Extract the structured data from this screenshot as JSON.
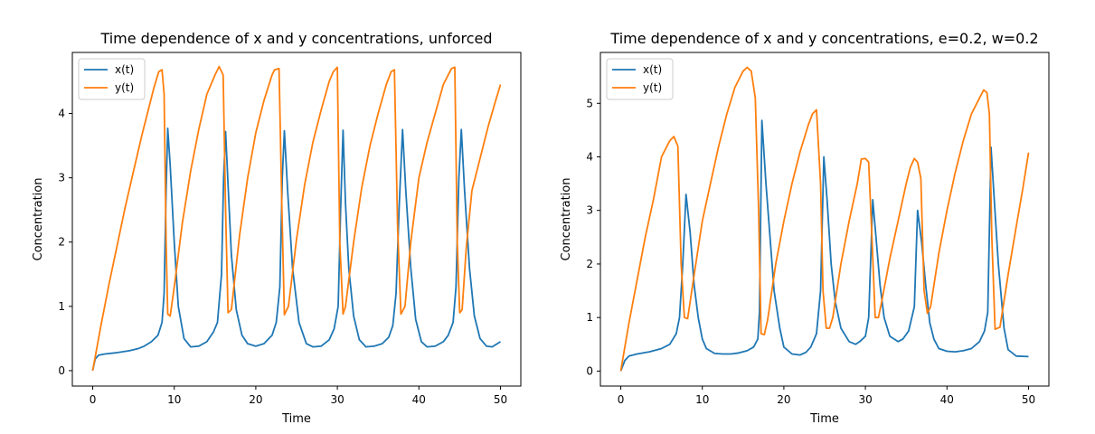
{
  "chart_data": [
    {
      "type": "line",
      "title": "Time dependence of x and y concentrations, unforced",
      "xlabel": "Time",
      "ylabel": "Concentration",
      "xlim": [
        -2.5,
        52.5
      ],
      "ylim": [
        -0.24,
        4.95
      ],
      "xticks": [
        0,
        10,
        20,
        30,
        40,
        50
      ],
      "yticks": [
        0,
        1,
        2,
        3,
        4
      ],
      "legend": "top-left",
      "grid": false,
      "series": [
        {
          "name": "x(t)",
          "color": "#1f77b4",
          "x": [
            0,
            0.3,
            0.7,
            1.5,
            3,
            4.5,
            5.5,
            6.3,
            7.2,
            8.0,
            8.5,
            8.75,
            9.0,
            9.2,
            9.5,
            10.0,
            10.5,
            11.2,
            12.0,
            13.0,
            14.0,
            14.8,
            15.3,
            15.8,
            16.05,
            16.3,
            16.6,
            17.0,
            17.6,
            18.3,
            19.0,
            20.0,
            21.0,
            22.0,
            22.5,
            22.95,
            23.25,
            23.5,
            23.9,
            24.5,
            25.3,
            26.2,
            27.0,
            28.0,
            29.0,
            29.6,
            30.1,
            30.4,
            30.7,
            31.0,
            31.4,
            32.0,
            32.7,
            33.5,
            34.5,
            35.5,
            36.3,
            36.8,
            37.2,
            37.6,
            38.0,
            38.4,
            39.0,
            39.6,
            40.3,
            41.0,
            42.0,
            43.0,
            43.6,
            44.2,
            44.55,
            44.9,
            45.2,
            45.6,
            46.2,
            46.8,
            47.5,
            48.3,
            49.0,
            50.0
          ],
          "values": [
            0,
            0.18,
            0.24,
            0.26,
            0.28,
            0.31,
            0.34,
            0.38,
            0.45,
            0.55,
            0.75,
            1.2,
            2.8,
            3.77,
            3.2,
            2.0,
            1.0,
            0.5,
            0.37,
            0.38,
            0.45,
            0.6,
            0.75,
            1.5,
            3.0,
            3.72,
            2.9,
            1.8,
            0.95,
            0.55,
            0.42,
            0.38,
            0.42,
            0.55,
            0.75,
            1.3,
            3.0,
            3.73,
            2.8,
            1.6,
            0.75,
            0.42,
            0.37,
            0.38,
            0.48,
            0.65,
            1.0,
            2.5,
            3.74,
            2.6,
            1.6,
            0.85,
            0.48,
            0.37,
            0.38,
            0.42,
            0.52,
            0.7,
            1.2,
            2.6,
            3.75,
            2.8,
            1.6,
            0.8,
            0.45,
            0.37,
            0.38,
            0.45,
            0.55,
            0.75,
            1.3,
            3.0,
            3.75,
            2.8,
            1.6,
            0.85,
            0.5,
            0.38,
            0.37,
            0.45
          ]
        },
        {
          "name": "y(t)",
          "color": "#ff7f0e",
          "x": [
            0,
            1,
            2,
            3,
            4,
            5,
            6,
            7,
            7.5,
            8.1,
            8.5,
            8.75,
            9.0,
            9.2,
            9.5,
            10.0,
            11.0,
            12.0,
            13.0,
            14.0,
            15.0,
            15.5,
            16.0,
            16.3,
            16.6,
            17.0,
            18.0,
            19.0,
            20.0,
            21.0,
            22.0,
            22.3,
            22.85,
            23.2,
            23.5,
            24.0,
            25.0,
            26.0,
            27.0,
            28.0,
            29.0,
            29.5,
            30.0,
            30.3,
            30.7,
            31.0,
            32.0,
            33.0,
            34.0,
            35.0,
            36.0,
            36.6,
            37.0,
            37.4,
            37.8,
            38.3,
            39.0,
            40.0,
            41.0,
            42.0,
            43.0,
            44.0,
            44.4,
            44.7,
            45.0,
            45.3,
            45.8,
            46.5,
            47.5,
            48.5,
            49.3,
            50.0
          ],
          "values": [
            0,
            0.7,
            1.35,
            1.95,
            2.55,
            3.1,
            3.65,
            4.15,
            4.4,
            4.65,
            4.68,
            4.3,
            2.0,
            0.88,
            0.85,
            1.3,
            2.3,
            3.1,
            3.75,
            4.3,
            4.6,
            4.73,
            4.6,
            2.5,
            0.9,
            0.95,
            2.1,
            3.0,
            3.7,
            4.2,
            4.6,
            4.68,
            4.7,
            2.5,
            0.87,
            1.0,
            2.05,
            2.9,
            3.55,
            4.05,
            4.5,
            4.65,
            4.72,
            2.0,
            0.88,
            1.0,
            2.0,
            2.85,
            3.5,
            4.0,
            4.45,
            4.65,
            4.68,
            2.2,
            0.88,
            1.0,
            2.0,
            3.0,
            3.55,
            4.0,
            4.45,
            4.7,
            4.72,
            2.0,
            0.9,
            0.95,
            1.9,
            2.8,
            3.3,
            3.8,
            4.15,
            4.45
          ]
        }
      ]
    },
    {
      "type": "line",
      "title": "Time dependence of x and y concentrations, e=0.2, w=0.2",
      "xlabel": "Time",
      "ylabel": "Concentration",
      "xlim": [
        -2.5,
        52.5
      ],
      "ylim": [
        -0.28,
        5.95
      ],
      "xticks": [
        0,
        10,
        20,
        30,
        40,
        50
      ],
      "yticks": [
        0,
        1,
        2,
        3,
        4,
        5
      ],
      "legend": "top-left",
      "grid": false,
      "series": [
        {
          "name": "x(t)",
          "color": "#1f77b4",
          "x": [
            0,
            0.5,
            1,
            2,
            3.5,
            5,
            6,
            6.8,
            7.2,
            7.6,
            8.0,
            8.5,
            9.0,
            9.5,
            10.0,
            10.5,
            11.5,
            12.5,
            13.5,
            14.5,
            15.5,
            16.3,
            16.8,
            17.0,
            17.3,
            17.8,
            18.3,
            18.8,
            19.5,
            20.0,
            21.0,
            22.0,
            22.7,
            23.3,
            24.0,
            24.5,
            24.9,
            25.3,
            25.8,
            26.3,
            27.0,
            28.0,
            28.8,
            29.3,
            30.0,
            30.4,
            30.9,
            31.3,
            31.8,
            32.3,
            33.0,
            34.0,
            34.6,
            35.3,
            36.0,
            36.4,
            36.9,
            37.4,
            37.9,
            38.4,
            39.0,
            40.0,
            41.0,
            42.0,
            43.0,
            44.0,
            44.6,
            45.0,
            45.4,
            45.8,
            46.3,
            47.0,
            47.5,
            48.5,
            50.0
          ],
          "values": [
            0,
            0.2,
            0.28,
            0.32,
            0.36,
            0.42,
            0.5,
            0.7,
            1.0,
            2.0,
            3.3,
            2.6,
            1.6,
            1.0,
            0.6,
            0.42,
            0.33,
            0.32,
            0.32,
            0.34,
            0.38,
            0.45,
            0.6,
            1.1,
            4.68,
            3.5,
            2.5,
            1.5,
            0.8,
            0.45,
            0.32,
            0.3,
            0.35,
            0.45,
            0.7,
            1.5,
            4.0,
            3.2,
            2.0,
            1.3,
            0.8,
            0.55,
            0.5,
            0.55,
            0.65,
            1.0,
            3.2,
            2.5,
            1.6,
            1.0,
            0.65,
            0.55,
            0.6,
            0.75,
            1.2,
            3.0,
            2.4,
            1.6,
            0.9,
            0.6,
            0.42,
            0.37,
            0.36,
            0.38,
            0.42,
            0.55,
            0.75,
            1.1,
            4.18,
            3.2,
            2.0,
            0.8,
            0.4,
            0.28,
            0.27
          ]
        },
        {
          "name": "y(t)",
          "color": "#ff7f0e",
          "x": [
            0,
            1,
            2,
            3,
            4,
            5,
            6,
            6.5,
            7.0,
            7.4,
            7.8,
            8.2,
            9.0,
            10.0,
            11.0,
            12.0,
            13.0,
            14.0,
            15.0,
            15.5,
            16.0,
            16.5,
            16.9,
            17.2,
            17.6,
            18.0,
            19.0,
            20.0,
            21.0,
            22.0,
            23.0,
            23.5,
            24.0,
            24.5,
            24.8,
            25.2,
            25.6,
            26.0,
            27.0,
            28.0,
            29.0,
            29.5,
            30.0,
            30.4,
            30.8,
            31.2,
            31.6,
            32.0,
            33.0,
            34.0,
            35.0,
            35.5,
            36.0,
            36.4,
            36.8,
            37.2,
            37.6,
            38.0,
            39.0,
            40.0,
            41.0,
            42.0,
            43.0,
            44.0,
            44.5,
            44.9,
            45.2,
            45.5,
            45.9,
            46.5,
            47.5,
            48.5,
            49.3,
            50.0
          ],
          "values": [
            0,
            0.9,
            1.7,
            2.5,
            3.2,
            4.0,
            4.3,
            4.38,
            4.2,
            2.0,
            1.0,
            0.98,
            1.8,
            2.8,
            3.5,
            4.2,
            4.8,
            5.3,
            5.6,
            5.67,
            5.6,
            5.1,
            3.0,
            0.7,
            0.68,
            0.95,
            2.0,
            2.8,
            3.5,
            4.1,
            4.6,
            4.8,
            4.88,
            3.5,
            1.5,
            0.8,
            0.8,
            1.0,
            2.0,
            2.8,
            3.5,
            3.96,
            3.97,
            3.9,
            2.5,
            1.0,
            1.0,
            1.3,
            2.1,
            2.8,
            3.5,
            3.8,
            3.97,
            3.9,
            3.6,
            1.5,
            1.08,
            1.2,
            2.2,
            3.0,
            3.7,
            4.3,
            4.8,
            5.1,
            5.25,
            5.2,
            4.8,
            2.5,
            0.78,
            0.82,
            1.8,
            2.7,
            3.4,
            4.08
          ]
        }
      ]
    }
  ]
}
